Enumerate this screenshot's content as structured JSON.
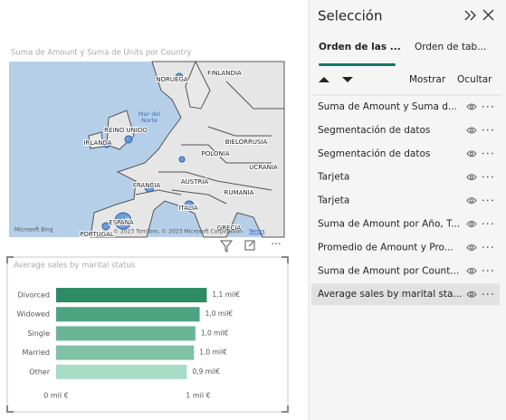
{
  "map": {
    "title": "Suma de Amount y Suma de Units por Country",
    "labels": [
      "FINLANDIA",
      "NORUEGA",
      "Mar del",
      "Norte",
      "REINO UNIDO",
      "IRLANDA",
      "BIELORRUSIA",
      "POLONIA",
      "UCRANIA",
      "FRANCIA",
      "AUSTRIA",
      "RUMANIA",
      "ITALIA",
      "ESPAÑA",
      "GRECIA",
      "PORTUGAL"
    ],
    "bing": "Microsoft Bing",
    "attribution": "© 2023 TomTom, © 2023 Microsoft Corporation",
    "terms": "Terms"
  },
  "chart_data": {
    "type": "bar",
    "orientation": "horizontal",
    "title": "Average sales by marital status",
    "categories": [
      "Divorced",
      "Widowed",
      "Single",
      "Married",
      "Other"
    ],
    "values": [
      1.06,
      1.01,
      0.98,
      0.97,
      0.92
    ],
    "value_labels": [
      "1,1 mil€",
      "1,0 mil€",
      "1,0 mil€",
      "1,0 mil€",
      "0,9 mil€"
    ],
    "colors": [
      "#2e8b66",
      "#4da482",
      "#6bb596",
      "#7fc1a4",
      "#a9dcc6"
    ],
    "xlim": [
      0,
      1.1
    ],
    "xticks": [
      {
        "value": 0,
        "label": "0 mil €"
      },
      {
        "value": 1,
        "label": "1 mil €"
      }
    ]
  },
  "pane": {
    "title": "Selección",
    "tabs": [
      "Orden de las ...",
      "Orden de tab..."
    ],
    "actions": [
      "Mostrar",
      "Ocultar"
    ],
    "items": [
      "Suma de Amount y Suma d...",
      "Segmentación de datos",
      "Segmentación de datos",
      "Tarjeta",
      "Tarjeta",
      "Suma de Amount por Año, T...",
      "Promedio de Amount y Pro...",
      "Suma de Amount por Count...",
      "Average sales by marital sta..."
    ]
  }
}
